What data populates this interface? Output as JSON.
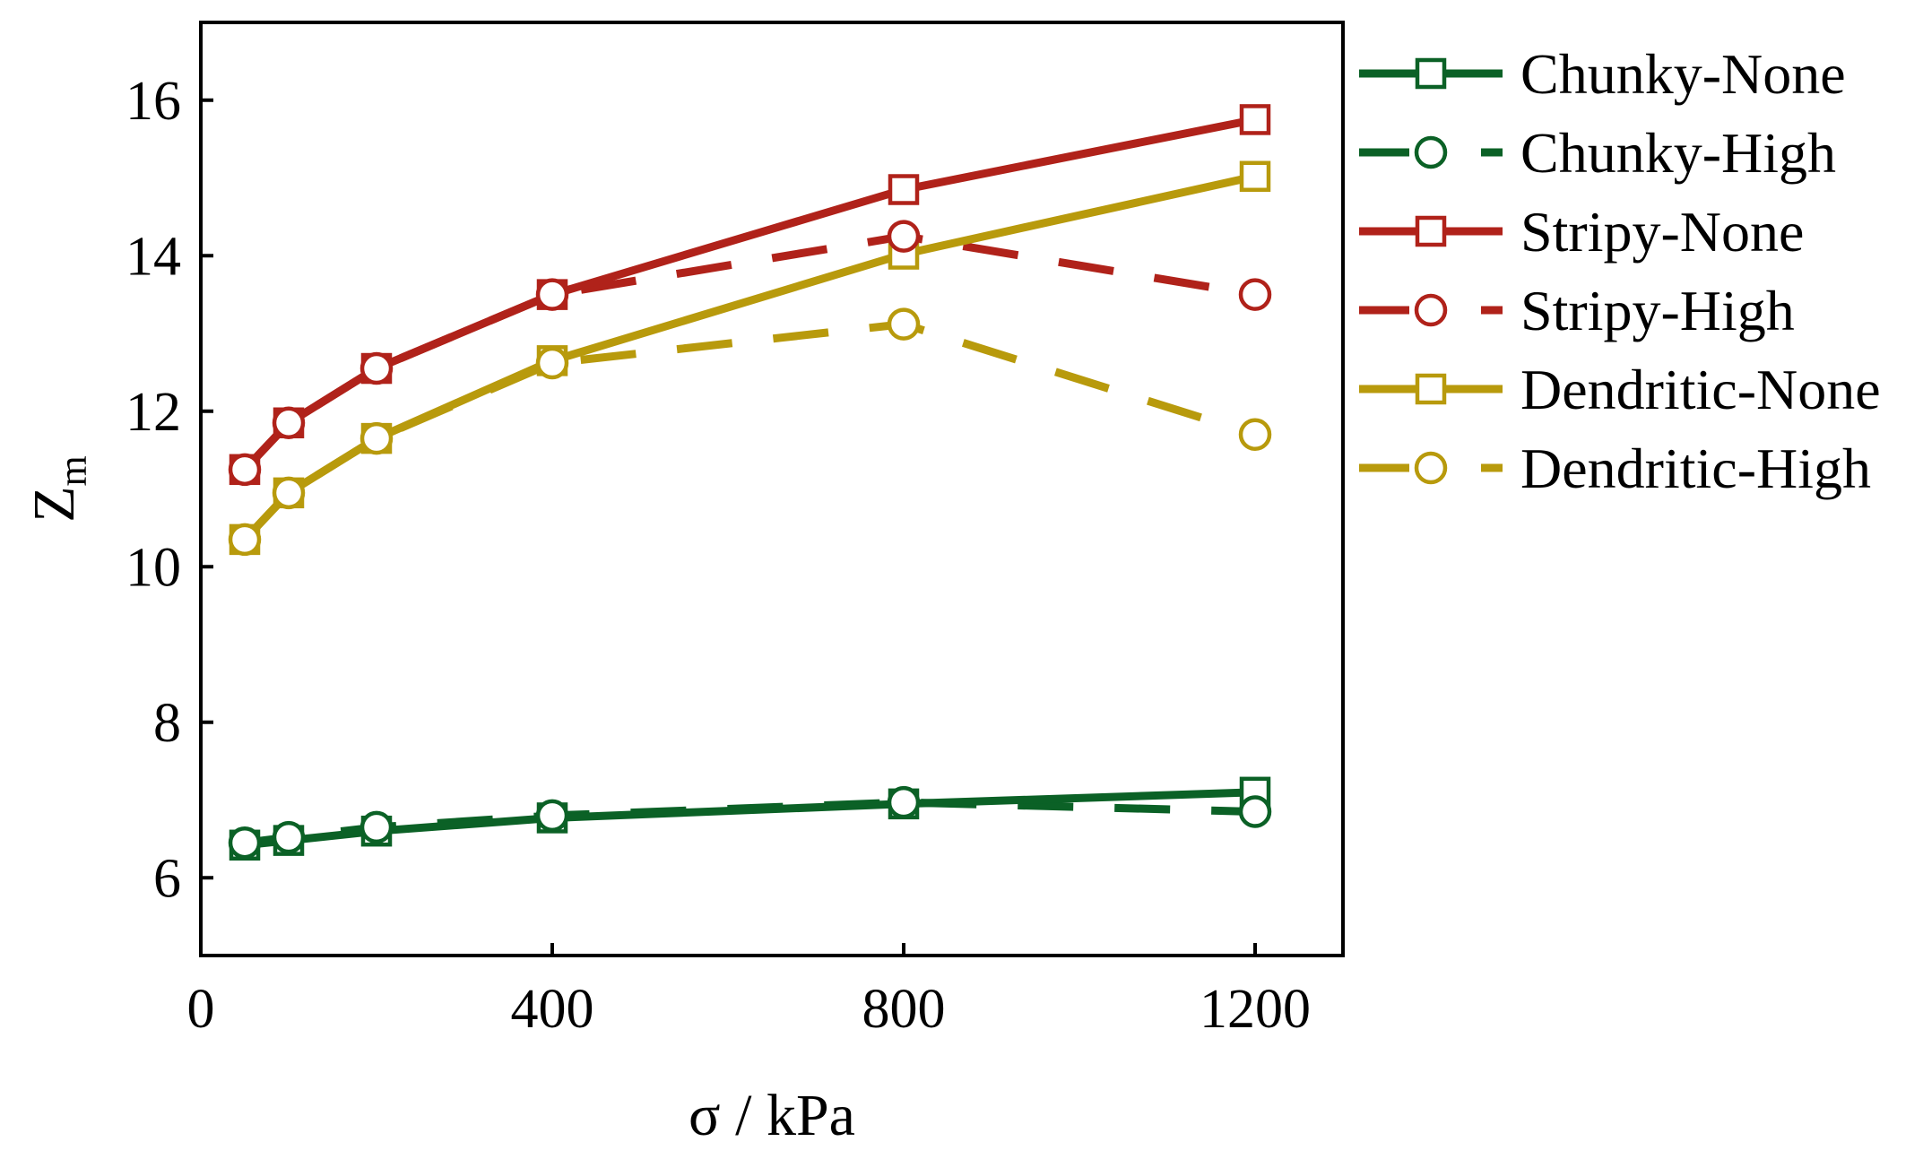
{
  "chart_data": {
    "type": "line",
    "title": "",
    "xlabel": "σ / kPa",
    "ylabel": "Z",
    "ylabel_subscript": "m",
    "xlim": [
      0,
      1300
    ],
    "ylim": [
      5,
      17
    ],
    "xticks": [
      0,
      400,
      800,
      1200
    ],
    "xtick_labels": [
      "0",
      "400",
      "800",
      "1200"
    ],
    "yticks": [
      6,
      8,
      10,
      12,
      14,
      16
    ],
    "ytick_labels": [
      "6",
      "8",
      "10",
      "12",
      "14",
      "16"
    ],
    "grid": false,
    "legend_position": "outside-right",
    "x": [
      50,
      100,
      200,
      400,
      800,
      1200
    ],
    "series": [
      {
        "name": "Chunky-None",
        "color": "#0b6126",
        "marker": "square",
        "dashed": false,
        "values": [
          6.42,
          6.48,
          6.6,
          6.77,
          6.95,
          7.1
        ]
      },
      {
        "name": "Chunky-High",
        "color": "#0b6126",
        "marker": "circle",
        "dashed": true,
        "values": [
          6.45,
          6.52,
          6.65,
          6.8,
          6.97,
          6.85
        ]
      },
      {
        "name": "Stripy-None",
        "color": "#b0221a",
        "marker": "square",
        "dashed": false,
        "values": [
          11.25,
          11.85,
          12.55,
          13.5,
          14.85,
          15.75
        ]
      },
      {
        "name": "Stripy-High",
        "color": "#b0221a",
        "marker": "circle",
        "dashed": true,
        "values": [
          11.25,
          11.85,
          12.55,
          13.5,
          14.25,
          13.5
        ]
      },
      {
        "name": "Dendritic-None",
        "color": "#b89a0c",
        "marker": "square",
        "dashed": false,
        "values": [
          10.35,
          10.95,
          11.65,
          12.65,
          14.02,
          15.02
        ]
      },
      {
        "name": "Dendritic-High",
        "color": "#b89a0c",
        "marker": "circle",
        "dashed": true,
        "values": [
          10.35,
          10.95,
          11.65,
          12.62,
          13.12,
          11.7
        ]
      }
    ]
  }
}
